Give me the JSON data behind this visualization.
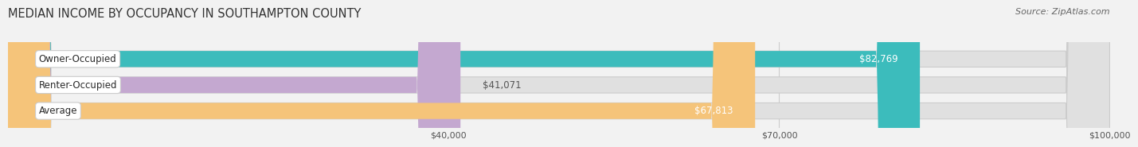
{
  "title": "MEDIAN INCOME BY OCCUPANCY IN SOUTHAMPTON COUNTY",
  "source": "Source: ZipAtlas.com",
  "categories": [
    "Owner-Occupied",
    "Renter-Occupied",
    "Average"
  ],
  "values": [
    82769,
    41071,
    67813
  ],
  "bar_colors": [
    "#3cbcbc",
    "#c4a8d0",
    "#f5c47a"
  ],
  "value_labels": [
    "$82,769",
    "$41,071",
    "$67,813"
  ],
  "xlim": [
    0,
    100000
  ],
  "xticks": [
    40000,
    70000,
    100000
  ],
  "xtick_labels": [
    "$40,000",
    "$70,000",
    "$100,000"
  ],
  "background_color": "#f2f2f2",
  "bar_background_color": "#e0e0e0",
  "title_fontsize": 10.5,
  "source_fontsize": 8,
  "label_fontsize": 8.5,
  "value_fontsize": 8.5,
  "bar_height": 0.62
}
